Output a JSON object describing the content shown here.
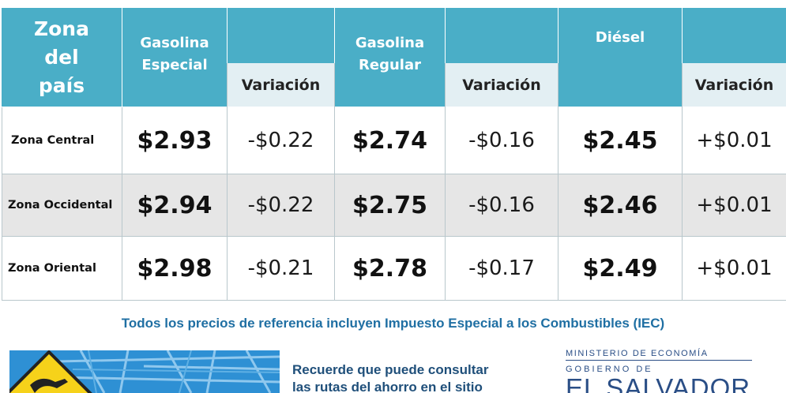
{
  "table": {
    "header": {
      "zona": "Zona del país",
      "especial": "Gasolina Especial",
      "regular": "Gasolina Regular",
      "diesel": "Diésel",
      "variacion": "Variación"
    },
    "rows": [
      {
        "zona": "Zona Central",
        "especial": "$2.93",
        "especial_var": "-$0.22",
        "regular": "$2.74",
        "regular_var": "-$0.16",
        "diesel": "$2.45",
        "diesel_var": "+$0.01"
      },
      {
        "zona": "Zona Occidental",
        "especial": "$2.94",
        "especial_var": "-$0.22",
        "regular": "$2.75",
        "regular_var": "-$0.16",
        "diesel": "$2.46",
        "diesel_var": "+$0.01"
      },
      {
        "zona": "Zona Oriental",
        "especial": "$2.98",
        "especial_var": "-$0.21",
        "regular": "$2.78",
        "regular_var": "-$0.17",
        "diesel": "$2.49",
        "diesel_var": "+$0.01"
      }
    ]
  },
  "note": "Todos los precios de referencia incluyen Impuesto Especial a los Combustibles (IEC)",
  "reminder": {
    "line1": "Recuerde que puede consultar",
    "line2": "las rutas del ahorro en el sitio"
  },
  "logo": {
    "ministry": "MINISTERIO DE ECONOMÍA",
    "gobierno": "GOBIERNO DE",
    "country": "EL SALVADOR"
  },
  "colors": {
    "header_bg": "#4aaec7",
    "subheader_bg": "#e3eff3",
    "row_alt_bg": "#e6e6e6",
    "note_text": "#1f6fa3",
    "logo_text": "#2a4e86"
  },
  "icons": {
    "road_sign": "fuel-pump-road-sign-icon",
    "map": "city-map-icon"
  }
}
